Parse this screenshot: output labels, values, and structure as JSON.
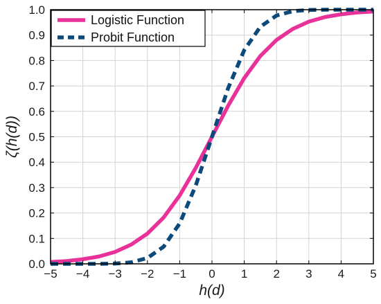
{
  "chart_data": {
    "type": "line",
    "title": "",
    "xlabel": "h(d)",
    "ylabel": "ζ(h(d))",
    "xlim": [
      -5,
      5
    ],
    "ylim": [
      0,
      1
    ],
    "xticks": [
      -5,
      -4,
      -3,
      -2,
      -1,
      0,
      1,
      2,
      3,
      4,
      5
    ],
    "xtick_labels": [
      "−5",
      "−4",
      "−3",
      "−2",
      "−1",
      "0",
      "1",
      "2",
      "3",
      "4",
      "5"
    ],
    "yticks": [
      0,
      0.1,
      0.2,
      0.3,
      0.4,
      0.5,
      0.6,
      0.7,
      0.8,
      0.9,
      1.0
    ],
    "ytick_labels": [
      "0.0",
      "0.1",
      "0.2",
      "0.3",
      "0.4",
      "0.5",
      "0.6",
      "0.7",
      "0.8",
      "0.9",
      "1.0"
    ],
    "grid": true,
    "legend_position": "top-left",
    "series": [
      {
        "name": "Logistic Function",
        "color": "#e8329a",
        "style": "solid",
        "x": [
          -5,
          -4.5,
          -4,
          -3.5,
          -3,
          -2.5,
          -2,
          -1.5,
          -1,
          -0.5,
          0,
          0.5,
          1,
          1.5,
          2,
          2.5,
          3,
          3.5,
          4,
          4.5,
          5
        ],
        "y": [
          0.007,
          0.011,
          0.018,
          0.029,
          0.047,
          0.076,
          0.119,
          0.182,
          0.269,
          0.378,
          0.5,
          0.622,
          0.731,
          0.818,
          0.881,
          0.924,
          0.953,
          0.971,
          0.982,
          0.989,
          0.993
        ]
      },
      {
        "name": "Probit Function",
        "color": "#0d4a7c",
        "style": "dashed",
        "x": [
          -5,
          -4.5,
          -4,
          -3.5,
          -3,
          -2.5,
          -2,
          -1.5,
          -1,
          -0.5,
          0,
          0.5,
          1,
          1.5,
          2,
          2.5,
          3,
          3.5,
          4,
          4.5,
          5
        ],
        "y": [
          0.0,
          0.0,
          0.0,
          0.0,
          0.001,
          0.006,
          0.023,
          0.067,
          0.159,
          0.309,
          0.5,
          0.691,
          0.841,
          0.933,
          0.977,
          0.994,
          0.999,
          1.0,
          1.0,
          1.0,
          1.0
        ]
      }
    ]
  }
}
